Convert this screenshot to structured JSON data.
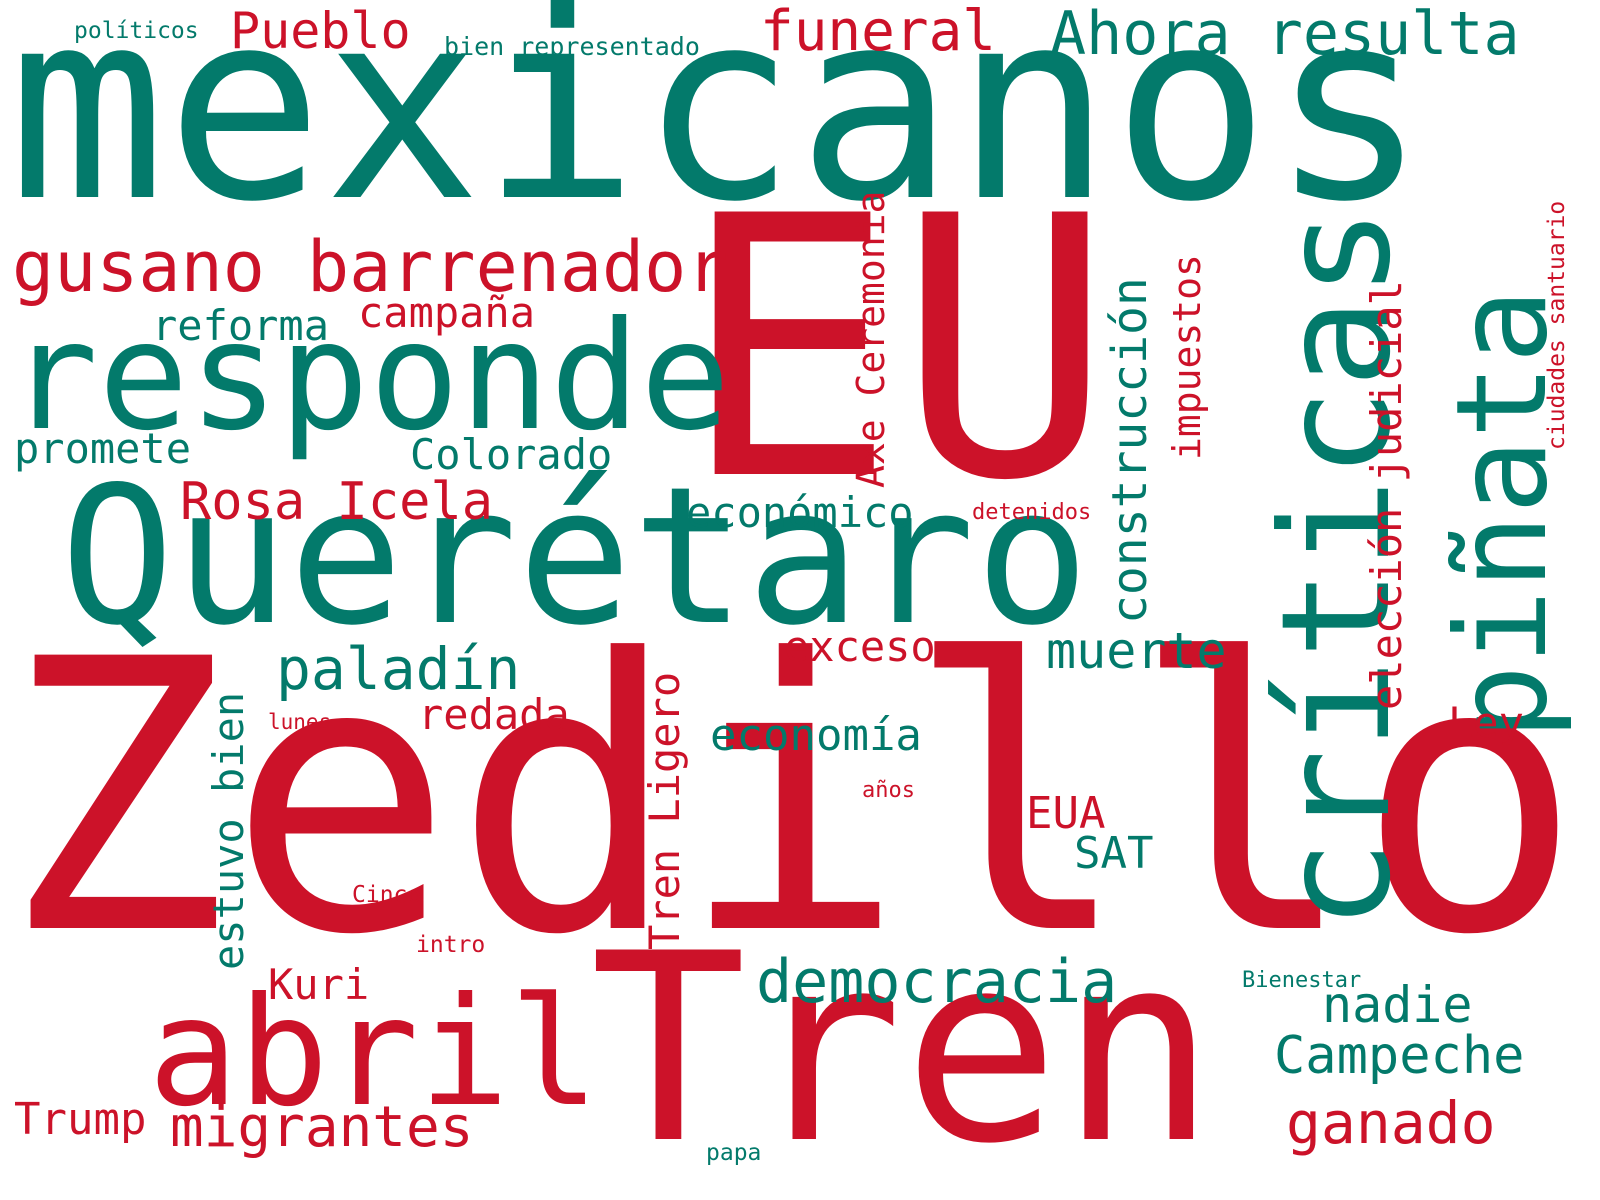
{
  "colors": {
    "green": "#037a6b",
    "red": "#cc1229",
    "background": "#ffffff"
  },
  "words": {
    "mexicanos": "mexicanos",
    "eu": "EU",
    "zedillo": "Zedillo",
    "tren": "Tren",
    "queretaro": "Querétaro",
    "responde": "responde",
    "criticas": "críticas",
    "pinata": "piñata",
    "abril": "abril",
    "gusano_barrenador": "gusano barrenador",
    "ahora_resulta": "Ahora resulta",
    "funeral": "funeral",
    "pueblo": "Pueblo",
    "politicos": "políticos",
    "bien_representado": "bien representado",
    "reforma": "reforma",
    "campana": "campaña",
    "promete": "promete",
    "colorado": "Colorado",
    "rosa_icela": "Rosa Icela",
    "economico": "económico",
    "detenidos": "detenidos",
    "paladin": "paladín",
    "exceso": "exceso",
    "muerte": "muerte",
    "redada": "redada",
    "lunes": "lunes",
    "economia": "economía",
    "anos": "años",
    "ley": "Ley",
    "eua": "EUA",
    "sat": "SAT",
    "cinco": "Cinco",
    "intro": "intro",
    "democracia": "democracia",
    "kuri": "Kuri",
    "nadie": "nadie",
    "bienestar": "Bienestar",
    "campeche": "Campeche",
    "trump": "Trump",
    "migrantes": "migrantes",
    "ganado": "ganado",
    "papa": "papa",
    "axe_ceremonia": "Axe Ceremonia",
    "construccion": "construcción",
    "impuestos": "impuestos",
    "eleccion_judicial": "elección judicial",
    "ciudades_santuario": "ciudades santuario",
    "estuvo_bien": "estuvo bien",
    "tren_ligero": "Tren Ligero"
  }
}
